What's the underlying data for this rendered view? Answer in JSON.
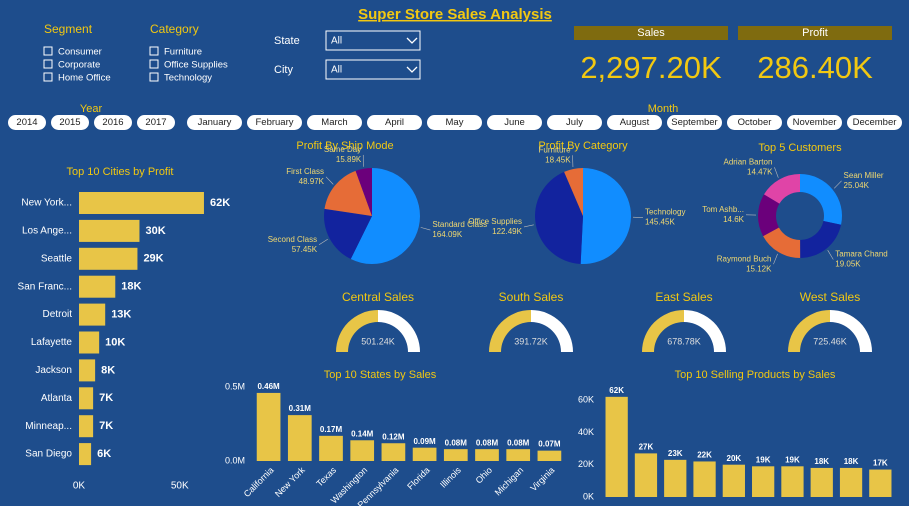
{
  "title": "Super Store Sales Analysis",
  "slicers": {
    "segment": {
      "label": "Segment",
      "options": [
        "Consumer",
        "Corporate",
        "Home Office"
      ]
    },
    "category": {
      "label": "Category",
      "options": [
        "Furniture",
        "Office Supplies",
        "Technology"
      ]
    },
    "state": {
      "label": "State",
      "selected": "All"
    },
    "city": {
      "label": "City",
      "selected": "All"
    },
    "year": {
      "label": "Year",
      "options": [
        "2014",
        "2015",
        "2016",
        "2017"
      ]
    },
    "month": {
      "label": "Month",
      "options": [
        "January",
        "February",
        "March",
        "April",
        "May",
        "June",
        "July",
        "August",
        "September",
        "October",
        "November",
        "December"
      ]
    }
  },
  "cards": [
    {
      "label": "Sales",
      "value": "2,297.20K"
    },
    {
      "label": "Profit",
      "value": "286.40K"
    }
  ],
  "chart_data": [
    {
      "type": "hbar",
      "title": "Top 10 Cities by Profit",
      "categories": [
        "New York...",
        "Los Ange...",
        "Seattle",
        "San Franc...",
        "Detroit",
        "Lafayette",
        "Jackson",
        "Atlanta",
        "Minneap...",
        "San Diego"
      ],
      "values": [
        62000,
        30000,
        29000,
        18000,
        13000,
        10000,
        8000,
        7000,
        7000,
        6000
      ],
      "value_labels": [
        "62K",
        "30K",
        "29K",
        "18K",
        "13K",
        "10K",
        "8K",
        "7K",
        "7K",
        "6K"
      ],
      "color": "#e8c547",
      "xlim": [
        0,
        65000
      ],
      "xticks": [
        {
          "value": 0,
          "label": "0K"
        },
        {
          "value": 50000,
          "label": "50K"
        }
      ]
    },
    {
      "type": "pie",
      "title": "Profit By Ship Mode",
      "categories": [
        "Standard Class",
        "Second Class",
        "First Class",
        "Same Day"
      ],
      "values": [
        164.09,
        57.45,
        48.97,
        15.89
      ],
      "value_labels": [
        "164.09K",
        "57.45K",
        "48.97K",
        "15.89K"
      ],
      "colors": [
        "#118dff",
        "#12239e",
        "#e66c37",
        "#6b007b"
      ]
    },
    {
      "type": "pie",
      "title": "Profit By Category",
      "categories": [
        "Technology",
        "Office Supplies",
        "Furniture"
      ],
      "values": [
        145.45,
        122.49,
        18.45
      ],
      "value_labels": [
        "145.45K",
        "122.49K",
        "18.45K"
      ],
      "colors": [
        "#118dff",
        "#12239e",
        "#e66c37"
      ]
    },
    {
      "type": "donut",
      "title": "Top 5 Customers",
      "categories": [
        "Sean Miller",
        "Tamara Chand",
        "Raymond Buch",
        "Tom Ashb...",
        "Adrian Barton"
      ],
      "values": [
        25.04,
        19.05,
        15.12,
        14.6,
        14.47
      ],
      "value_labels": [
        "25.04K",
        "19.05K",
        "15.12K",
        "14.6K",
        "14.47K"
      ],
      "colors": [
        "#118dff",
        "#12239e",
        "#e66c37",
        "#6b007b",
        "#e044a7"
      ]
    },
    {
      "type": "gauge",
      "title": "Central Sales",
      "value": 501.24,
      "value_label": "501.24K",
      "ylim": [
        0,
        1002.48
      ],
      "color": "#e8c547"
    },
    {
      "type": "gauge",
      "title": "South Sales",
      "value": 391.72,
      "value_label": "391.72K",
      "ylim": [
        0,
        783.44
      ],
      "color": "#e8c547"
    },
    {
      "type": "gauge",
      "title": "East Sales",
      "value": 678.78,
      "value_label": "678.78K",
      "ylim": [
        0,
        1357.56
      ],
      "color": "#e8c547"
    },
    {
      "type": "gauge",
      "title": "West Sales",
      "value": 725.46,
      "value_label": "725.46K",
      "ylim": [
        0,
        1450.92
      ],
      "color": "#e8c547"
    },
    {
      "type": "bar",
      "title": "Top 10 States by Sales",
      "categories": [
        "California",
        "New York",
        "Texas",
        "Washington",
        "Pennsylvania",
        "Florida",
        "Illinois",
        "Ohio",
        "Michigan",
        "Virginia"
      ],
      "values": [
        460000,
        310000,
        170000,
        140000,
        120000,
        90000,
        80000,
        80000,
        80000,
        70000
      ],
      "value_labels": [
        "0.46M",
        "0.31M",
        "0.17M",
        "0.14M",
        "0.12M",
        "0.09M",
        "0.08M",
        "0.08M",
        "0.08M",
        "0.07M"
      ],
      "color": "#e8c547",
      "ylim": [
        0,
        500000
      ],
      "yticks": [
        {
          "value": 0,
          "label": "0.0M"
        },
        {
          "value": 500000,
          "label": "0.5M"
        }
      ]
    },
    {
      "type": "bar",
      "title": "Top 10 Selling Products by Sales",
      "categories": [
        null,
        null,
        null,
        null,
        null,
        null,
        null,
        null,
        null,
        null
      ],
      "values": [
        62000,
        27000,
        23000,
        22000,
        20000,
        19000,
        19000,
        18000,
        18000,
        17000
      ],
      "value_labels": [
        "62K",
        "27K",
        "23K",
        "22K",
        "20K",
        "19K",
        "19K",
        "18K",
        "18K",
        "17K"
      ],
      "color": "#e8c547",
      "ylim": [
        0,
        65000
      ],
      "yticks": [
        {
          "value": 0,
          "label": "0K"
        },
        {
          "value": 20000,
          "label": "20K"
        },
        {
          "value": 40000,
          "label": "40K"
        },
        {
          "value": 60000,
          "label": "60K"
        }
      ]
    }
  ]
}
